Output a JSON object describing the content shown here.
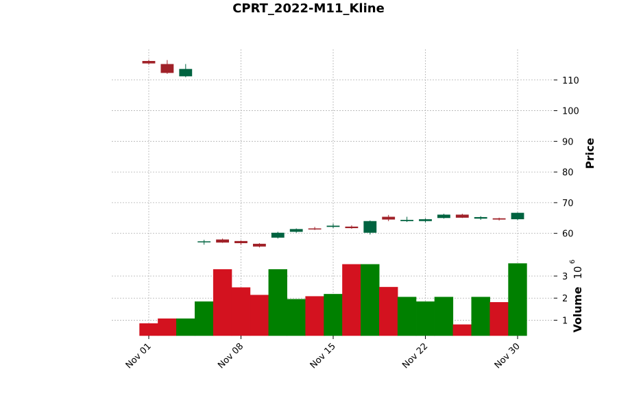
{
  "chart_data": {
    "type": "candlestick",
    "title": "CPRT_2022-M11_Kline",
    "price_label": "Price",
    "volume_label": "Volume",
    "volume_scale_label": "10",
    "volume_scale_exp": "6",
    "up_color": "#006340",
    "down_color": "#a02128",
    "volume_up_color": "#008000",
    "volume_down_color": "#d3121f",
    "grid": true,
    "price_ylim": [
      53,
      120
    ],
    "volume_ylim": [
      0.3,
      3.9
    ],
    "price_ticks": [
      60,
      70,
      80,
      90,
      100,
      110
    ],
    "volume_ticks": [
      1,
      2,
      3
    ],
    "x_ticks": [
      {
        "day": 1,
        "label": "Nov 01"
      },
      {
        "day": 8,
        "label": "Nov 08"
      },
      {
        "day": 15,
        "label": "Nov 15"
      },
      {
        "day": 22,
        "label": "Nov 22"
      },
      {
        "day": 30,
        "label": "Nov 30"
      }
    ],
    "candles": [
      {
        "day": 1,
        "open": 116.2,
        "high": 116.6,
        "low": 115.0,
        "close": 115.4,
        "volume": 0.85
      },
      {
        "day": 2,
        "open": 115.2,
        "high": 116.5,
        "low": 112.0,
        "close": 112.3,
        "volume": 1.07
      },
      {
        "day": 3,
        "open": 111.2,
        "high": 115.2,
        "low": 110.9,
        "close": 113.6,
        "volume": 1.07
      },
      {
        "day": 4,
        "open": 57.1,
        "high": 57.9,
        "low": 56.3,
        "close": 57.4,
        "volume": 1.84
      },
      {
        "day": 7,
        "open": 58.0,
        "high": 58.3,
        "low": 56.9,
        "close": 57.0,
        "volume": 3.3
      },
      {
        "day": 8,
        "open": 57.5,
        "high": 57.7,
        "low": 56.3,
        "close": 56.8,
        "volume": 2.48
      },
      {
        "day": 9,
        "open": 56.6,
        "high": 56.8,
        "low": 55.4,
        "close": 55.7,
        "volume": 2.14
      },
      {
        "day": 10,
        "open": 58.6,
        "high": 60.5,
        "low": 58.3,
        "close": 60.2,
        "volume": 3.3
      },
      {
        "day": 11,
        "open": 60.5,
        "high": 61.6,
        "low": 60.2,
        "close": 61.4,
        "volume": 1.95
      },
      {
        "day": 14,
        "open": 61.6,
        "high": 62.1,
        "low": 61.1,
        "close": 61.3,
        "volume": 2.08
      },
      {
        "day": 15,
        "open": 62.1,
        "high": 63.2,
        "low": 61.7,
        "close": 62.5,
        "volume": 2.18
      },
      {
        "day": 16,
        "open": 62.2,
        "high": 62.6,
        "low": 61.5,
        "close": 61.7,
        "volume": 3.53
      },
      {
        "day": 17,
        "open": 60.2,
        "high": 64.2,
        "low": 59.6,
        "close": 64.0,
        "volume": 3.53
      },
      {
        "day": 18,
        "open": 65.4,
        "high": 66.0,
        "low": 64.0,
        "close": 64.5,
        "volume": 2.5
      },
      {
        "day": 21,
        "open": 64.0,
        "high": 65.4,
        "low": 63.7,
        "close": 64.4,
        "volume": 2.05
      },
      {
        "day": 22,
        "open": 64.0,
        "high": 64.9,
        "low": 63.6,
        "close": 64.6,
        "volume": 1.84
      },
      {
        "day": 23,
        "open": 65.0,
        "high": 66.4,
        "low": 64.8,
        "close": 66.1,
        "volume": 2.05
      },
      {
        "day": 25,
        "open": 66.1,
        "high": 66.4,
        "low": 65.0,
        "close": 65.1,
        "volume": 0.8
      },
      {
        "day": 28,
        "open": 64.8,
        "high": 65.6,
        "low": 64.4,
        "close": 65.3,
        "volume": 2.05
      },
      {
        "day": 29,
        "open": 64.9,
        "high": 65.1,
        "low": 64.2,
        "close": 64.5,
        "volume": 1.81
      },
      {
        "day": 30,
        "open": 64.6,
        "high": 66.8,
        "low": 64.3,
        "close": 66.7,
        "volume": 3.57
      }
    ]
  }
}
